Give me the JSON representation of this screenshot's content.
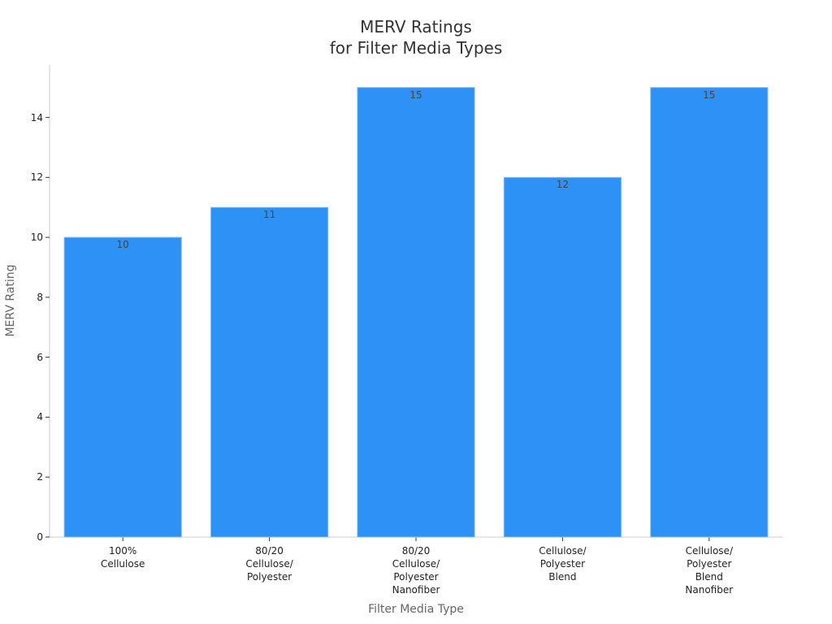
{
  "chart_data": {
    "type": "bar",
    "title": "MERV Ratings\nfor Filter Media Types",
    "x_label": "Filter Media Type",
    "y_label": "MERV Rating",
    "categories": [
      "100%\nCellulose",
      "80/20\nCellulose/\nPolyester",
      "80/20\nCellulose/\nPolyester\nNanofiber",
      "Cellulose/\nPolyester\nBlend",
      "Cellulose/\nPolyester\nBlend\nNanofiber"
    ],
    "values": [
      10,
      11,
      15,
      12,
      15
    ],
    "color": "#2e91f5",
    "ylim": [
      0,
      15.75
    ],
    "yticks": [
      0,
      2,
      4,
      6,
      8,
      10,
      12,
      14
    ],
    "grid": false
  }
}
